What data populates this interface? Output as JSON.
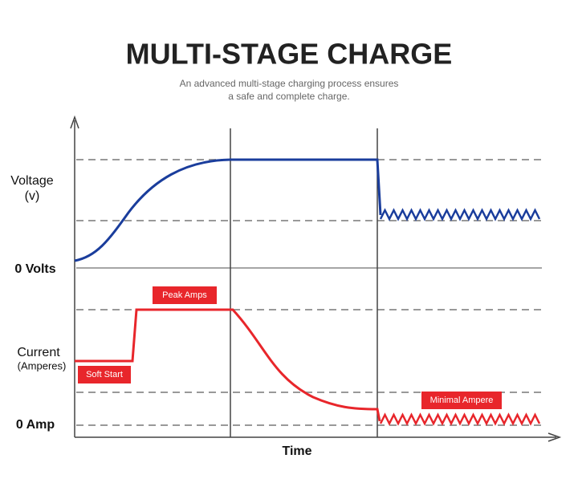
{
  "header": {
    "title": "MULTI-STAGE CHARGE",
    "subtitle_lines": [
      "An advanced multi-stage charging process ensures",
      "a safe and complete charge."
    ]
  },
  "axis_labels": {
    "voltage": [
      "Voltage",
      "(v)"
    ],
    "zero_volts": "0 Volts",
    "current": [
      "Current",
      "(Amperes)"
    ],
    "zero_amp": "0 Amp",
    "time": "Time"
  },
  "callouts": {
    "peak": "Peak Amps",
    "soft_start": "Soft Start",
    "minimal": "Minimal Ampere"
  }
}
